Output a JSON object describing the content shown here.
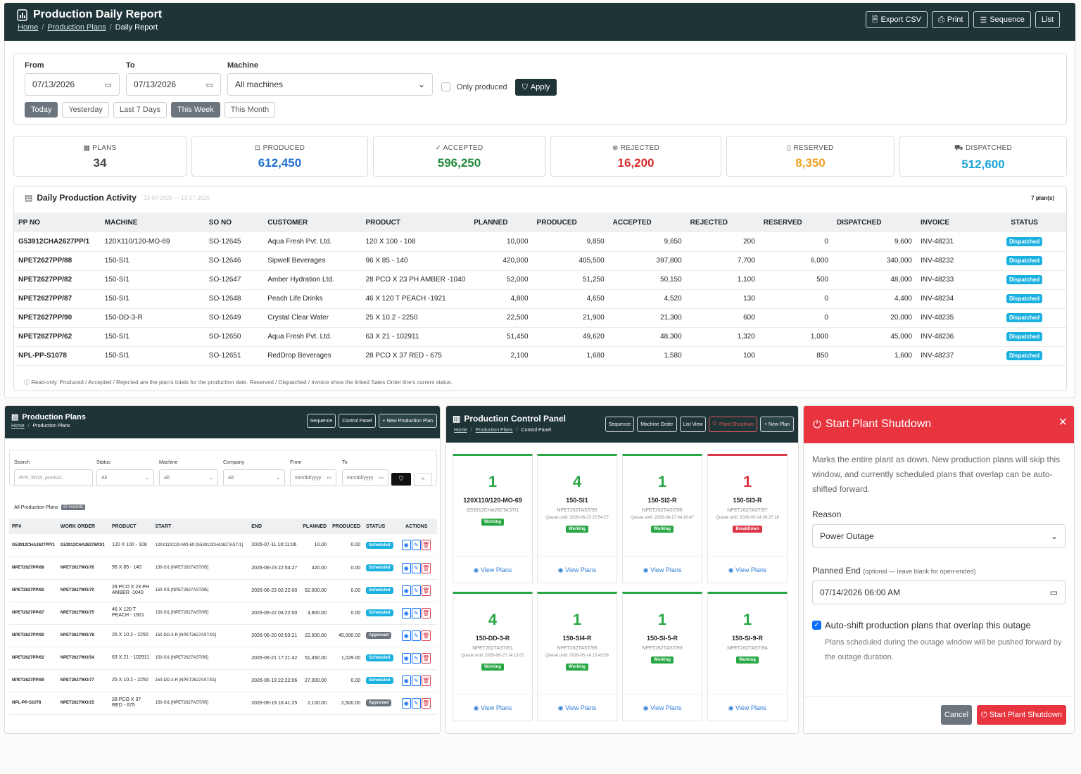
{
  "header": {
    "title": "Production Daily Report",
    "breadcrumb": [
      "Home",
      "Production Plans",
      "Daily Report"
    ],
    "buttons": [
      "Export CSV",
      "Print",
      "Sequence",
      "List"
    ]
  },
  "filters": {
    "from_label": "From",
    "from_value": "07/13/2026",
    "to_label": "To",
    "to_value": "07/13/2026",
    "machine_label": "Machine",
    "machine_value": "All machines",
    "only_produced": "Only produced",
    "apply": "Apply",
    "quick": [
      "Today",
      "Yesterday",
      "Last 7 Days",
      "This Week",
      "This Month"
    ]
  },
  "stats": [
    {
      "label": "PLANS",
      "value": "34",
      "color": "#444444"
    },
    {
      "label": "PRODUCED",
      "value": "612,450",
      "color": "#1f6fd1"
    },
    {
      "label": "ACCEPTED",
      "value": "596,250",
      "color": "#218838"
    },
    {
      "label": "REJECTED",
      "value": "16,200",
      "color": "#d62c2c"
    },
    {
      "label": "RESERVED",
      "value": "8,350",
      "color": "#f0a020"
    },
    {
      "label": "DISPATCHED",
      "value": "512,600",
      "color": "#1aa3d6"
    }
  ],
  "activity": {
    "title": "Daily Production Activity",
    "range": "13-07-2026 — 13-07-2026",
    "count": "7 plan(s)",
    "columns": [
      "PP NO",
      "MACHINE",
      "SO NO",
      "CUSTOMER",
      "PRODUCT",
      "PLANNED",
      "PRODUCED",
      "ACCEPTED",
      "REJECTED",
      "RESERVED",
      "DISPATCHED",
      "INVOICE",
      "STATUS"
    ],
    "rows": [
      [
        "G53912CHA2627PP/1",
        "120X110/120-MO-69",
        "SO-12645",
        "Aqua Fresh Pvt. Ltd.",
        "120 X 100 - 108",
        "10,000",
        "9,850",
        "9,650",
        "200",
        "0",
        "9,600",
        "INV-48231",
        "Dispatched"
      ],
      [
        "NPET2627PP/88",
        "150-SI1",
        "SO-12646",
        "Sipwell Beverages",
        "96 X 85 - 140",
        "420,000",
        "405,500",
        "397,800",
        "7,700",
        "6,000",
        "340,000",
        "INV-48232",
        "Dispatched"
      ],
      [
        "NPET2627PP/82",
        "150-SI1",
        "SO-12647",
        "Amber Hydration Ltd.",
        "28 PCO X 23 PH AMBER -1040",
        "52,000",
        "51,250",
        "50,150",
        "1,100",
        "500",
        "48,000",
        "INV-48233",
        "Dispatched"
      ],
      [
        "NPET2627PP/87",
        "150-SI1",
        "SO-12648",
        "Peach Life Drinks",
        "46 X 120 T PEACH -1921",
        "4,800",
        "4,650",
        "4,520",
        "130",
        "0",
        "4,400",
        "INV-48234",
        "Dispatched"
      ],
      [
        "NPET2627PP/90",
        "150-DD-3-R",
        "SO-12649",
        "Crystal Clear Water",
        "25 X 10.2 - 2250",
        "22,500",
        "21,900",
        "21,300",
        "600",
        "0",
        "20,000",
        "INV-48235",
        "Dispatched"
      ],
      [
        "NPET2627PP/62",
        "150-SI1",
        "SO-12650",
        "Aqua Fresh Pvt. Ltd.",
        "63 X 21 - 102911",
        "51,450",
        "49,620",
        "48,300",
        "1,320",
        "1,000",
        "45,000",
        "INV-48236",
        "Dispatched"
      ],
      [
        "NPL-PP-S1078",
        "150-SI1",
        "SO-12651",
        "RedDrop Beverages",
        "28 PCO X 37 RED - 675",
        "2,100",
        "1,680",
        "1,580",
        "100",
        "850",
        "1,600",
        "INV-48237",
        "Dispatched"
      ]
    ],
    "note": "Read-only. Produced / Accepted / Rejected are the plan's totals for the production date. Reserved / Dispatched / Invoice show the linked Sales Order line's current status."
  },
  "plans_panel": {
    "title": "Production Plans",
    "breadcrumb": [
      "Home",
      "Production Plans"
    ],
    "buttons": [
      "Sequence",
      "Control Panel",
      "+ New Production Plan"
    ],
    "labels": [
      "Search",
      "Status",
      "Machine",
      "Company",
      "From",
      "To"
    ],
    "search_placeholder": "PP#, WO#, product...",
    "selects": [
      "All",
      "All",
      "All"
    ],
    "date_placeholder": "mm/dd/yyyy",
    "list_title": "All Production Plans",
    "records": "37 records",
    "columns": [
      "PP#",
      "WORK ORDER",
      "PRODUCT",
      "START",
      "END",
      "PLANNED",
      "PRODUCED",
      "STATUS",
      "ACTIONS"
    ],
    "rows": [
      [
        "G53912CHA2627PP/1",
        "G53912CHA2627WO/1",
        "120 X 100 - 108",
        "120X110/120-MO-69 [G53912CHA262TAST/1]",
        "2026-07-11 10:11:06",
        "10.00",
        "0.00",
        "Scheduled"
      ],
      [
        "NPET2627PP/88",
        "NPET2627WO/76",
        "96 X 85 - 140",
        "150-SI1 [NPET2627AST/95]",
        "2026-06-23 22:54:27",
        "420.00",
        "0.00",
        "Scheduled"
      ],
      [
        "NPET2627PP/82",
        "NPET2627WO/70",
        "28 PCO X 23 PH AMBER -1040",
        "150-SI1 [NPET2627AST/95]",
        "2026-06-23 02:22:00",
        "52,000.00",
        "0.00",
        "Scheduled"
      ],
      [
        "NPET2627PP/87",
        "NPET2627WO/75",
        "46 X 120 T PEACH - 1921",
        "150-SI1 [NPET2627AST/95]",
        "2026-06-22 03:22:00",
        "4,800.00",
        "0.00",
        "Scheduled"
      ],
      [
        "NPET2627PP/90",
        "NPET2627WO/78",
        "25 X 10.2 - 2250",
        "150-DD-3-R [NPET2627AST/91]",
        "2026-06-20 02:53:21",
        "22,500.00",
        "45,000.00",
        "Approved"
      ],
      [
        "NPET2627PP/62",
        "NPET2627WO/54",
        "63 X 21 - 102911",
        "150-SI1 [NPET2627AST/95]",
        "2026-06-21 17:21:42",
        "51,450.00",
        "1,029.00",
        "Scheduled"
      ],
      [
        "NPET2627PP/89",
        "NPET2627WO/77",
        "25 X 10.2 - 2250",
        "150-DD-3-R [NPET2627AST/91]",
        "2026-06-19 22:22:06",
        "27,000.00",
        "0.00",
        "Scheduled"
      ],
      [
        "NPL-PP-S1078",
        "NPET2627WO/15",
        "28 PCO X 37 RED - 675",
        "150-SI1 [NPET2627AST/95]",
        "2026-06-19 16:41:25",
        "2,100.00",
        "2,500.00",
        "Approved"
      ]
    ]
  },
  "control_panel": {
    "title": "Production Control Panel",
    "breadcrumb": [
      "Home",
      "Production Plans",
      "Control Panel"
    ],
    "buttons": [
      "Sequence",
      "Machine Order",
      "List View",
      "Plant Shutdown",
      "+ New Plan"
    ],
    "view_plans": "View Plans",
    "machines": [
      {
        "count": "1",
        "name": "120X110/120-MO-69",
        "asset": "G53912CHA262TAST/1",
        "queue": "",
        "status": "Working",
        "state": "ok"
      },
      {
        "count": "4",
        "name": "150-SI1",
        "asset": "NPET262TAST/95",
        "queue": "Queue until: 2026-06-23 22:54:27",
        "status": "Working",
        "state": "ok"
      },
      {
        "count": "1",
        "name": "150-SI2-R",
        "asset": "NPET262TAST/96",
        "queue": "Queue until: 2026-06-17 04:18:47",
        "status": "Working",
        "state": "ok"
      },
      {
        "count": "1",
        "name": "150-SI3-R",
        "asset": "NPET262TAST/97",
        "queue": "Queue until: 2026-05-14 00:27:18",
        "status": "BreakDown",
        "state": "bd"
      },
      {
        "count": "4",
        "name": "150-DD-3-R",
        "asset": "NPET262TAST/91",
        "queue": "Queue until: 2026-06-15 14:13:01",
        "status": "Working",
        "state": "ok"
      },
      {
        "count": "1",
        "name": "150-SI4-R",
        "asset": "NPET262TAST/98",
        "queue": "Queue until: 2026-05-14 13:43:58",
        "status": "Working",
        "state": "ok"
      },
      {
        "count": "1",
        "name": "150-SI-5-R",
        "asset": "NPET262TAST/93",
        "queue": "",
        "status": "Working",
        "state": "ok"
      },
      {
        "count": "1",
        "name": "150-SI-9-R",
        "asset": "NPET262TAST/94",
        "queue": "",
        "status": "Working",
        "state": "ok"
      }
    ]
  },
  "modal": {
    "title": "Start Plant Shutdown",
    "description": "Marks the entire plant as down. New production plans will skip this window, and currently scheduled plans that overlap can be auto-shifted forward.",
    "reason_label": "Reason",
    "reason_value": "Power Outage",
    "end_label": "Planned End",
    "end_hint": "(optional — leave blank for open-ended)",
    "end_value": "07/14/2026 06:00 AM",
    "autoshift_label": "Auto-shift production plans that overlap this outage",
    "autoshift_help": "Plans scheduled during the outage window will be pushed forward by the outage duration.",
    "cancel": "Cancel",
    "confirm": "Start Plant Shutdown"
  }
}
